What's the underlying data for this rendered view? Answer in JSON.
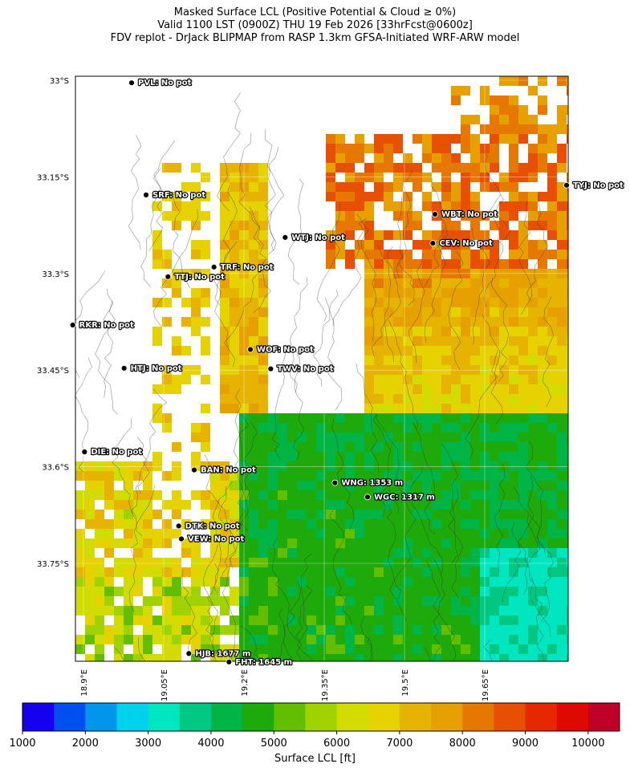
{
  "title": {
    "line1": "Masked Surface LCL (Positive Potential & Cloud ≥ 0%)",
    "line2": "Valid 1100 LST (0900Z) THU 19 Feb 2026 [33hrFcst@0600z]",
    "line3": "FDV replot - DrJack BLIPMAP from RASP 1.3km GFSA-Initiated WRF-ARW model"
  },
  "lat_ticks": [
    {
      "label": "33°S",
      "lat": -33.0
    },
    {
      "label": "33.15°S",
      "lat": -33.15
    },
    {
      "label": "33.3°S",
      "lat": -33.3
    },
    {
      "label": "33.45°S",
      "lat": -33.45
    },
    {
      "label": "33.6°S",
      "lat": -33.6
    },
    {
      "label": "33.75°S",
      "lat": -33.75
    }
  ],
  "lon_ticks": [
    {
      "label": "18.9°E",
      "lon": 18.9
    },
    {
      "label": "19.05°E",
      "lon": 19.05
    },
    {
      "label": "19.2°E",
      "lon": 19.2
    },
    {
      "label": "19.35°E",
      "lon": 19.35
    },
    {
      "label": "19.5°E",
      "lon": 19.5
    },
    {
      "label": "19.65°E",
      "lon": 19.65
    }
  ],
  "stations": [
    {
      "code": "PVL",
      "label": "PVL: No pot",
      "lon": 18.99,
      "lat": -33.004
    },
    {
      "code": "SRF",
      "label": "SRF: No pot",
      "lon": 19.017,
      "lat": -33.178
    },
    {
      "code": "WBT",
      "label": "WBT: No pot",
      "lon": 19.557,
      "lat": -33.208
    },
    {
      "code": "CEV",
      "label": "CEV: No pot",
      "lon": 19.553,
      "lat": -33.253
    },
    {
      "code": "TYJ",
      "label": "TYJ: No pot",
      "lon": 19.803,
      "lat": -33.163
    },
    {
      "code": "WTJ",
      "label": "WTJ: No pot",
      "lon": 19.277,
      "lat": -33.244
    },
    {
      "code": "TRF",
      "label": "TRF: No pot",
      "lon": 19.144,
      "lat": -33.29
    },
    {
      "code": "TTJ",
      "label": "TTJ: No pot",
      "lon": 19.058,
      "lat": -33.305
    },
    {
      "code": "RKR",
      "label": "RKR: No pot",
      "lon": 18.88,
      "lat": -33.38
    },
    {
      "code": "WOF",
      "label": "WOF: No pot",
      "lon": 19.212,
      "lat": -33.418
    },
    {
      "code": "HTJ",
      "label": "HTJ: No pot",
      "lon": 18.976,
      "lat": -33.447
    },
    {
      "code": "TWV",
      "label": "TWV: No pot",
      "lon": 19.25,
      "lat": -33.448
    },
    {
      "code": "DIE",
      "label": "DIE: No pot",
      "lon": 18.902,
      "lat": -33.577
    },
    {
      "code": "BAN",
      "label": "BAN: No pot",
      "lon": 19.107,
      "lat": -33.605
    },
    {
      "code": "WNG",
      "label": "WNG: 1353 m",
      "lon": 19.37,
      "lat": -33.625
    },
    {
      "code": "WGC",
      "label": "WGC: 1317 m",
      "lon": 19.431,
      "lat": -33.647
    },
    {
      "code": "DTK",
      "label": "DTK: No pot",
      "lon": 19.078,
      "lat": -33.692
    },
    {
      "code": "VEW",
      "label": "VEW: No pot",
      "lon": 19.083,
      "lat": -33.712
    },
    {
      "code": "HJB",
      "label": "HJB: 1677 m",
      "lon": 19.097,
      "lat": -33.89
    },
    {
      "code": "FHT",
      "label": "FHT: 1645 m",
      "lon": 19.172,
      "lat": -33.903
    }
  ],
  "colorbar": {
    "label": "Surface LCL [ft]",
    "tick_labels": [
      "1000",
      "2000",
      "3000",
      "4000",
      "5000",
      "6000",
      "7000",
      "8000",
      "9000",
      "10000"
    ],
    "range": [
      1000,
      10500
    ],
    "step": 500,
    "colors": [
      "#1500f0",
      "#0050f0",
      "#0096ec",
      "#00d2ec",
      "#00e6c0",
      "#00c882",
      "#00b446",
      "#1eaa0a",
      "#64be00",
      "#a0d200",
      "#d2dc00",
      "#e6d200",
      "#e6b400",
      "#e6a000",
      "#e67800",
      "#e65000",
      "#e62800",
      "#dc0a00",
      "#be0028"
    ]
  },
  "lcl_field_description": "",
  "layer_colors": {
    "terrain_contour": "#333333",
    "mask": "#ffffff"
  }
}
